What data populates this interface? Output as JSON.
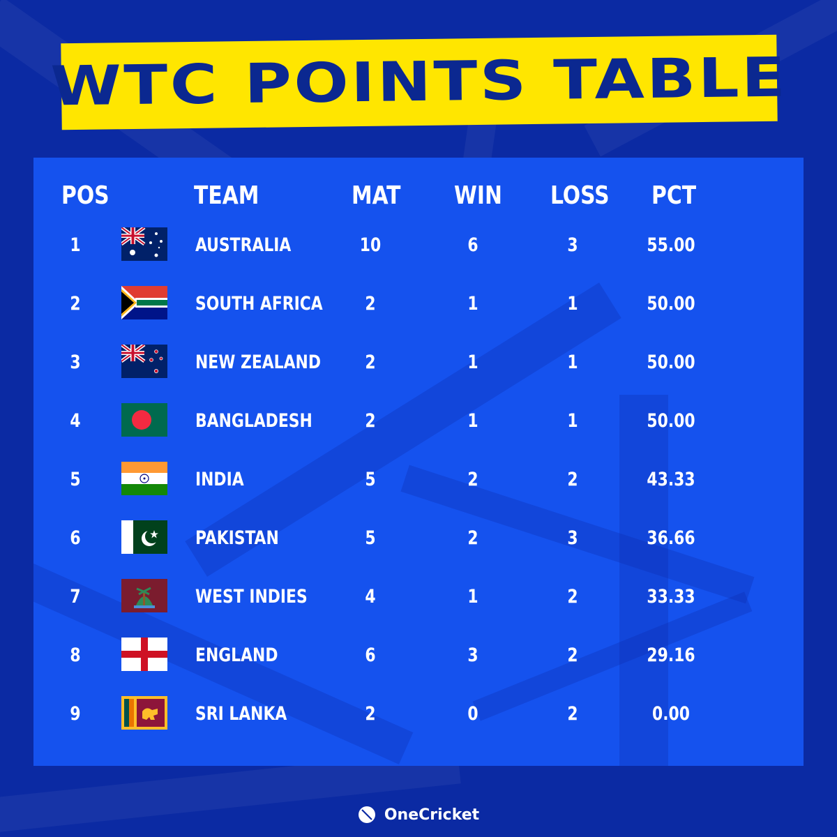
{
  "title": "WTC POINTS TABLE",
  "colors": {
    "background": "#0b2aa3",
    "panel": "#1552ee",
    "banner": "#ffe600",
    "banner_text": "#0b2890",
    "text": "#ffffff"
  },
  "headers": {
    "pos": "POS",
    "team": "TEAM",
    "mat": "MAT",
    "win": "WIN",
    "loss": "LOSS",
    "pct": "PCT"
  },
  "rows": [
    {
      "pos": "1",
      "flag": "australia-flag",
      "team": "AUSTRALIA",
      "mat": "10",
      "win": "6",
      "loss": "3",
      "pct": "55.00"
    },
    {
      "pos": "2",
      "flag": "south-africa-flag",
      "team": "SOUTH AFRICA",
      "mat": "2",
      "win": "1",
      "loss": "1",
      "pct": "50.00"
    },
    {
      "pos": "3",
      "flag": "new-zealand-flag",
      "team": "NEW ZEALAND",
      "mat": "2",
      "win": "1",
      "loss": "1",
      "pct": "50.00"
    },
    {
      "pos": "4",
      "flag": "bangladesh-flag",
      "team": "BANGLADESH",
      "mat": "2",
      "win": "1",
      "loss": "1",
      "pct": "50.00"
    },
    {
      "pos": "5",
      "flag": "india-flag",
      "team": "INDIA",
      "mat": "5",
      "win": "2",
      "loss": "2",
      "pct": "43.33"
    },
    {
      "pos": "6",
      "flag": "pakistan-flag",
      "team": "PAKISTAN",
      "mat": "5",
      "win": "2",
      "loss": "3",
      "pct": "36.66"
    },
    {
      "pos": "7",
      "flag": "west-indies-flag",
      "team": "WEST INDIES",
      "mat": "4",
      "win": "1",
      "loss": "2",
      "pct": "33.33"
    },
    {
      "pos": "8",
      "flag": "england-flag",
      "team": "ENGLAND",
      "mat": "6",
      "win": "3",
      "loss": "2",
      "pct": "29.16"
    },
    {
      "pos": "9",
      "flag": "sri-lanka-flag",
      "team": "SRI LANKA",
      "mat": "2",
      "win": "0",
      "loss": "2",
      "pct": "0.00"
    }
  ],
  "brand": {
    "name": "OneCricket",
    "logo_icon": "cricket-ball-icon"
  }
}
